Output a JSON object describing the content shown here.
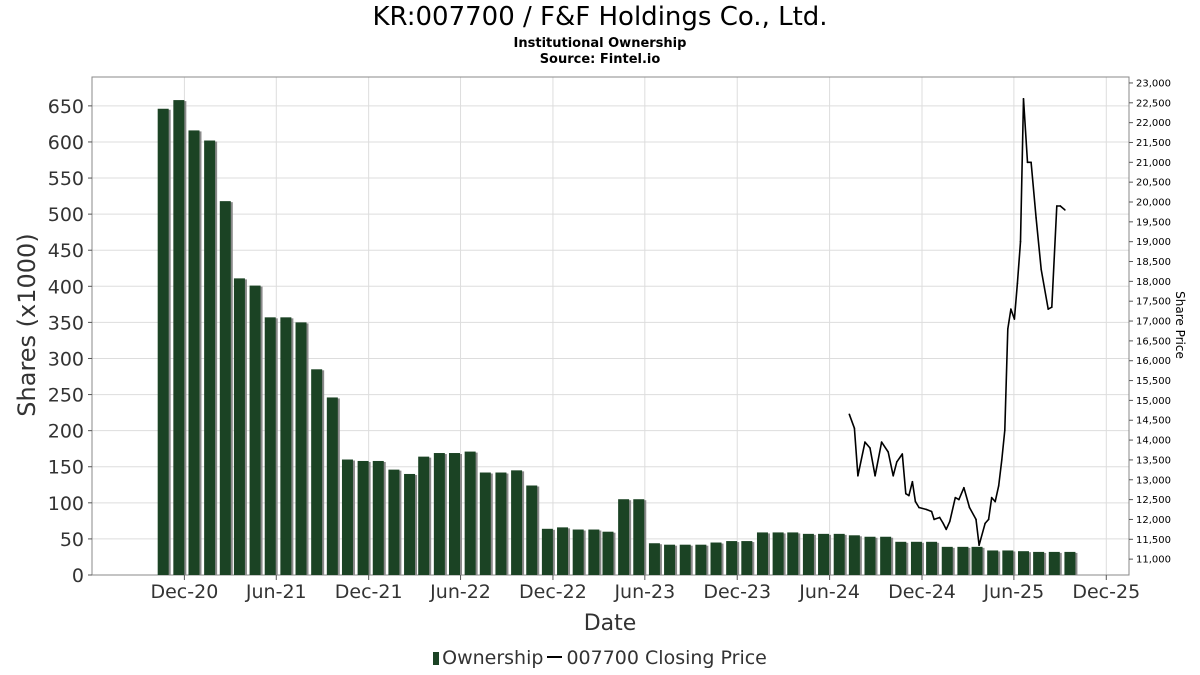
{
  "title": "KR:007700 / F&F Holdings Co., Ltd.",
  "subtitle": "Institutional Ownership",
  "source": "Source: Fintel.io",
  "legend": {
    "ownership": "Ownership",
    "price": "007700 Closing Price"
  },
  "colors": {
    "bar": "#1b4324",
    "bar_shadow": "#8a8a8a",
    "line": "#000000",
    "grid": "#dddddd",
    "frame": "#888888"
  },
  "chart_data": {
    "type": "bar",
    "title": "KR:007700 / F&F Holdings Co., Ltd.",
    "xlabel": "Date",
    "ylabel": "Shares (x1000)",
    "y2label": "Share Price",
    "ylim": [
      0,
      690
    ],
    "y2lim": [
      10600,
      23150
    ],
    "yticks": [
      "0",
      "50",
      "100",
      "150",
      "200",
      "250",
      "300",
      "350",
      "400",
      "450",
      "500",
      "550",
      "600",
      "650"
    ],
    "y2ticks": [
      "11,000",
      "11,500",
      "12,000",
      "12,500",
      "13,000",
      "13,500",
      "14,000",
      "14,500",
      "15,000",
      "15,500",
      "16,000",
      "16,500",
      "17,000",
      "17,500",
      "18,000",
      "18,500",
      "19,000",
      "19,500",
      "20,000",
      "20,500",
      "21,000",
      "21,500",
      "22,000",
      "22,500",
      "23,000"
    ],
    "xticks": [
      "Dec-20",
      "Jun-21",
      "Dec-21",
      "Jun-22",
      "Dec-22",
      "Jun-23",
      "Dec-23",
      "Jun-24",
      "Dec-24",
      "Jun-25",
      "Dec-25"
    ],
    "grid": true,
    "series": [
      {
        "name": "Ownership",
        "kind": "bar",
        "x": [
          "2020-10-20",
          "2020-11-20",
          "2020-12-20",
          "2021-01-20",
          "2021-02-20",
          "2021-03-20",
          "2021-04-20",
          "2021-05-20",
          "2021-06-20",
          "2021-07-20",
          "2021-08-20",
          "2021-09-20",
          "2021-10-20",
          "2021-11-20",
          "2021-12-20",
          "2022-01-20",
          "2022-02-20",
          "2022-03-20",
          "2022-04-20",
          "2022-05-20",
          "2022-06-20",
          "2022-07-20",
          "2022-08-20",
          "2022-09-20",
          "2022-10-20",
          "2022-11-20",
          "2022-12-20",
          "2023-01-20",
          "2023-02-20",
          "2023-03-20",
          "2023-04-20",
          "2023-05-20",
          "2023-06-20",
          "2023-07-20",
          "2023-08-20",
          "2023-09-20",
          "2023-10-20",
          "2023-11-20",
          "2023-12-20",
          "2024-01-20",
          "2024-02-20",
          "2024-03-20",
          "2024-04-20",
          "2024-05-20",
          "2024-06-20",
          "2024-07-20",
          "2024-08-20",
          "2024-09-20",
          "2024-10-20",
          "2024-11-20",
          "2024-12-20",
          "2025-01-20",
          "2025-02-20",
          "2025-03-20",
          "2025-04-20",
          "2025-05-20",
          "2025-06-20",
          "2025-07-20",
          "2025-08-20",
          "2025-09-20"
        ],
        "values": [
          646,
          658,
          616,
          602,
          518,
          411,
          401,
          357,
          357,
          350,
          285,
          246,
          160,
          158,
          158,
          146,
          140,
          164,
          169,
          169,
          171,
          142,
          142,
          145,
          124,
          64,
          66,
          63,
          63,
          60,
          105,
          105,
          44,
          42,
          42,
          42,
          45,
          47,
          47,
          59,
          59,
          59,
          57,
          57,
          57,
          55,
          53,
          53,
          46,
          46,
          46,
          39,
          39,
          39,
          34,
          34,
          33,
          32,
          32,
          32
        ]
      },
      {
        "name": "007700 Closing Price",
        "kind": "line",
        "x": [
          "2024-07-10",
          "2024-07-20",
          "2024-07-27",
          "2024-08-10",
          "2024-08-20",
          "2024-08-30",
          "2024-09-12",
          "2024-09-25",
          "2024-10-05",
          "2024-10-12",
          "2024-10-23",
          "2024-10-30",
          "2024-11-05",
          "2024-11-12",
          "2024-11-18",
          "2024-11-25",
          "2024-12-10",
          "2024-12-20",
          "2024-12-25",
          "2025-01-05",
          "2025-01-12",
          "2025-01-18",
          "2025-01-25",
          "2025-02-05",
          "2025-02-12",
          "2025-02-22",
          "2025-03-05",
          "2025-03-18",
          "2025-03-24",
          "2025-04-05",
          "2025-04-12",
          "2025-04-18",
          "2025-04-25",
          "2025-05-02",
          "2025-05-08",
          "2025-05-14",
          "2025-05-20",
          "2025-05-26",
          "2025-06-02",
          "2025-06-08",
          "2025-06-14",
          "2025-06-20",
          "2025-06-28",
          "2025-07-05",
          "2025-07-15",
          "2025-07-25",
          "2025-08-08",
          "2025-08-15",
          "2025-08-25",
          "2025-09-01",
          "2025-09-10"
        ],
        "values": [
          14650,
          14300,
          13100,
          13950,
          13800,
          13100,
          13950,
          13700,
          13100,
          13450,
          13650,
          12650,
          12600,
          12950,
          12450,
          12300,
          12250,
          12200,
          12000,
          12050,
          11900,
          11750,
          11950,
          12550,
          12500,
          12800,
          12300,
          12000,
          11350,
          11900,
          12000,
          12550,
          12450,
          12850,
          13500,
          14250,
          16800,
          17300,
          17050,
          17950,
          19000,
          22600,
          21000,
          21000,
          19600,
          18300,
          17300,
          17350,
          19900,
          19900,
          19800
        ]
      }
    ]
  }
}
